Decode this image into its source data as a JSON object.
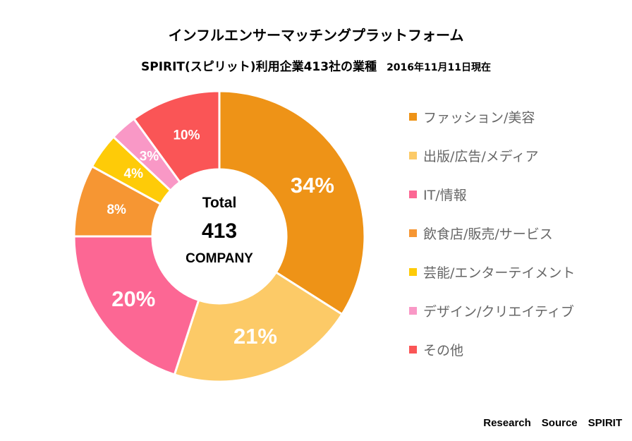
{
  "chart_data": {
    "type": "pie",
    "title": "インフルエンサーマッチングプラットフォーム",
    "subtitle": "SPIRIT(スピリット)利用企業413社の業種",
    "date_note": "2016年11月11日現在",
    "center": {
      "line1": "Total",
      "line2": "413",
      "line3": "COMPANY"
    },
    "categories": [
      "ファッション/美容",
      "出版/広告/メディア",
      "IT/情報",
      "飲食店/販売/サービス",
      "芸能/エンターテイメント",
      "デザイン/クリエイティブ",
      "その他"
    ],
    "values": [
      34,
      21,
      20,
      8,
      4,
      3,
      10
    ],
    "data_labels": [
      "34%",
      "21%",
      "20%",
      "8%",
      "4%",
      "3%",
      "10%"
    ],
    "colors": [
      "#EE9317",
      "#FCCA67",
      "#FC6794",
      "#F69633",
      "#FECB08",
      "#F998C6",
      "#FA5556"
    ],
    "legend_position": "right",
    "source": "Research　Source　SPIRIT"
  }
}
